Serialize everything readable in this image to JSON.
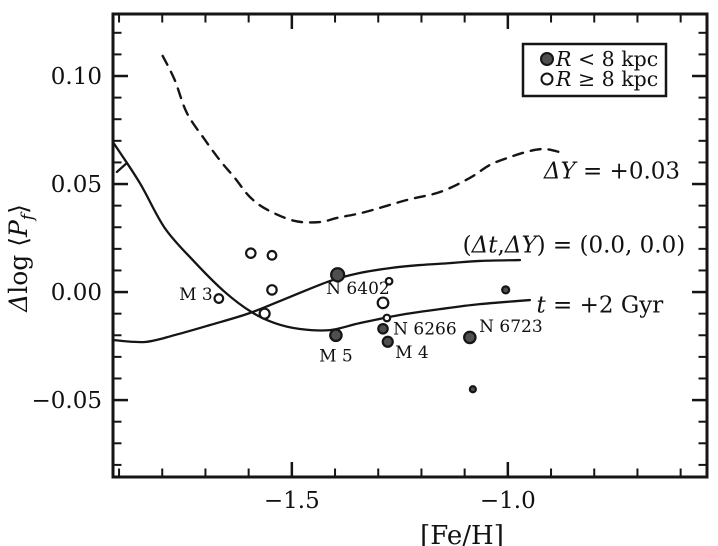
{
  "figure": {
    "background": "#ffffff",
    "ink_color": "#151515",
    "filled_marker_color": "#4f4f4f",
    "open_marker_color": "#ffffff"
  },
  "legend": {
    "items": [
      {
        "marker": "filled",
        "parts": [
          {
            "t": "R",
            "i": 1
          },
          {
            "t": " < 8 kpc"
          }
        ]
      },
      {
        "marker": "open",
        "parts": [
          {
            "t": "R",
            "i": 1
          },
          {
            "t": " ≥ 8 kpc"
          }
        ]
      }
    ]
  },
  "chart_data": {
    "type": "scatter",
    "title": "",
    "xlabel": "[Fe/H]",
    "ylabel_parts": [
      {
        "t": "Δ",
        "i": 1
      },
      {
        "t": "log "
      },
      {
        "t": "⟨"
      },
      {
        "t": "P",
        "i": 1
      },
      {
        "t": "f",
        "i": 1,
        "sub": 1
      },
      {
        "t": "⟩"
      }
    ],
    "xlim": [
      -1.914,
      -0.539
    ],
    "ylim": [
      -0.0856,
      0.1287
    ],
    "x_major_ticks": [
      -1.5,
      -1.0
    ],
    "x_major_tick_labels": [
      "−1.5",
      "−1.0"
    ],
    "x_minor_range": [
      -1.9,
      -0.6
    ],
    "x_minor_step": 0.1,
    "y_major_ticks": [
      0.1,
      0.05,
      0.0,
      -0.05
    ],
    "y_major_tick_labels": [
      "0.10",
      "0.05",
      "0.00",
      "−0.05"
    ],
    "y_minor_range": [
      -0.08,
      0.12
    ],
    "y_minor_step": 0.01,
    "grid": false,
    "legend_position": "top-right",
    "series": [
      {
        "name": "R < 8 kpc",
        "marker": "filled",
        "points": [
          {
            "x": -1.394,
            "y": 0.008,
            "r": 6.5,
            "label": "N 6402"
          },
          {
            "x": -1.398,
            "y": -0.02,
            "r": 5.7,
            "label": "M 5"
          },
          {
            "x": -1.289,
            "y": -0.017,
            "r": 4.7,
            "label": "N 6266"
          },
          {
            "x": -1.278,
            "y": -0.023,
            "r": 5.0,
            "label": "M 4"
          },
          {
            "x": -1.088,
            "y": -0.021,
            "r": 5.7,
            "label": "N 6723"
          },
          {
            "x": -1.005,
            "y": 0.001,
            "r": 3.5,
            "label": ""
          },
          {
            "x": -1.081,
            "y": -0.045,
            "r": 3.0,
            "label": ""
          }
        ]
      },
      {
        "name": "R ≥ 8 kpc",
        "marker": "open",
        "points": [
          {
            "x": -1.595,
            "y": 0.018,
            "r": 4.7,
            "label": ""
          },
          {
            "x": -1.546,
            "y": 0.017,
            "r": 4.3,
            "label": ""
          },
          {
            "x": -1.546,
            "y": 0.001,
            "r": 4.7,
            "label": ""
          },
          {
            "x": -1.669,
            "y": -0.003,
            "r": 4.3,
            "label": "M 3"
          },
          {
            "x": -1.563,
            "y": -0.01,
            "r": 5.0,
            "label": ""
          },
          {
            "x": -1.275,
            "y": 0.005,
            "r": 3.3,
            "label": ""
          },
          {
            "x": -1.289,
            "y": -0.005,
            "r": 5.3,
            "label": ""
          },
          {
            "x": -1.28,
            "y": -0.012,
            "r": 3.3,
            "label": ""
          }
        ]
      }
    ],
    "curves": [
      {
        "name": "delta-y-plus-0.03",
        "style": "dashed",
        "points": [
          [
            -1.799,
            0.1093
          ],
          [
            -1.771,
            0.0981
          ],
          [
            -1.743,
            0.0829
          ],
          [
            -1.701,
            0.0704
          ],
          [
            -1.667,
            0.0611
          ],
          [
            -1.632,
            0.0528
          ],
          [
            -1.597,
            0.044
          ],
          [
            -1.556,
            0.038
          ],
          [
            -1.493,
            0.0329
          ],
          [
            -1.435,
            0.0324
          ],
          [
            -1.396,
            0.0343
          ],
          [
            -1.331,
            0.037
          ],
          [
            -1.234,
            0.0426
          ],
          [
            -1.157,
            0.0463
          ],
          [
            -1.088,
            0.0528
          ],
          [
            -1.042,
            0.0588
          ],
          [
            -0.995,
            0.0625
          ],
          [
            -0.949,
            0.0653
          ],
          [
            -0.914,
            0.0662
          ],
          [
            -0.88,
            0.0648
          ]
        ]
      },
      {
        "name": "t-plus-2-gyr",
        "style": "solid",
        "points": [
          [
            -1.914,
            0.0694
          ],
          [
            -1.852,
            0.0505
          ],
          [
            -1.794,
            0.0296
          ],
          [
            -1.725,
            0.0139
          ],
          [
            -1.655,
            0.0
          ],
          [
            -1.593,
            -0.0093
          ],
          [
            -1.539,
            -0.0144
          ],
          [
            -1.481,
            -0.0171
          ],
          [
            -1.412,
            -0.0176
          ],
          [
            -1.343,
            -0.0144
          ],
          [
            -1.25,
            -0.0106
          ],
          [
            -1.157,
            -0.0079
          ],
          [
            -1.065,
            -0.0056
          ],
          [
            -0.949,
            -0.0037
          ]
        ]
      },
      {
        "name": "dt-dy-0.0-0.0",
        "style": "solid",
        "points": [
          [
            -1.914,
            -0.0222
          ],
          [
            -1.84,
            -0.0231
          ],
          [
            -1.771,
            -0.0199
          ],
          [
            -1.69,
            -0.0153
          ],
          [
            -1.597,
            -0.0097
          ],
          [
            -1.505,
            -0.0023
          ],
          [
            -1.412,
            0.0051
          ],
          [
            -1.343,
            0.0088
          ],
          [
            -1.273,
            0.0111
          ],
          [
            -1.204,
            0.0125
          ],
          [
            -1.134,
            0.0134
          ],
          [
            -1.065,
            0.0144
          ],
          [
            -0.972,
            0.0148
          ]
        ]
      },
      {
        "name": "stray-dash-fragment",
        "style": "solid",
        "points": [
          [
            -1.905,
            0.0556
          ],
          [
            -1.882,
            0.0597
          ]
        ]
      }
    ],
    "annotations": [
      {
        "id": "dy-label",
        "x": -0.759,
        "y": 0.0565,
        "size": 23,
        "parts": [
          {
            "t": "Δ",
            "i": 1
          },
          {
            "t": "Y",
            "i": 1
          },
          {
            "t": " = +0.03"
          }
        ]
      },
      {
        "id": "dtdy-label",
        "x": -0.847,
        "y": 0.0222,
        "size": 23,
        "parts": [
          {
            "t": "("
          },
          {
            "t": "Δ",
            "i": 1
          },
          {
            "t": "t",
            "i": 1
          },
          {
            "t": ","
          },
          {
            "t": "Δ",
            "i": 1
          },
          {
            "t": "Y",
            "i": 1
          },
          {
            "t": ") = (0.0, 0.0)"
          }
        ]
      },
      {
        "id": "t2gyr-label",
        "x": -0.787,
        "y": -0.0056,
        "size": 23,
        "parts": [
          {
            "t": "t",
            "i": 1
          },
          {
            "t": " = +2 Gyr"
          }
        ]
      },
      {
        "id": "m3-label",
        "x": -1.722,
        "y": -0.0009,
        "size": 17,
        "parts": [
          {
            "t": "M 3"
          }
        ]
      },
      {
        "id": "n6402-label",
        "x": -1.347,
        "y": 0.0019,
        "size": 17,
        "parts": [
          {
            "t": "N 6402"
          }
        ]
      },
      {
        "id": "m5-label",
        "x": -1.398,
        "y": -0.0292,
        "size": 17,
        "parts": [
          {
            "t": "M 5"
          }
        ]
      },
      {
        "id": "m4-label",
        "x": -1.222,
        "y": -0.0278,
        "size": 17,
        "parts": [
          {
            "t": "M 4"
          }
        ]
      },
      {
        "id": "n6266-label",
        "x": -1.192,
        "y": -0.0167,
        "size": 17,
        "parts": [
          {
            "t": "N 6266"
          }
        ]
      },
      {
        "id": "n6723-label",
        "x": -0.993,
        "y": -0.0157,
        "size": 17,
        "parts": [
          {
            "t": "N 6723"
          }
        ]
      }
    ]
  }
}
